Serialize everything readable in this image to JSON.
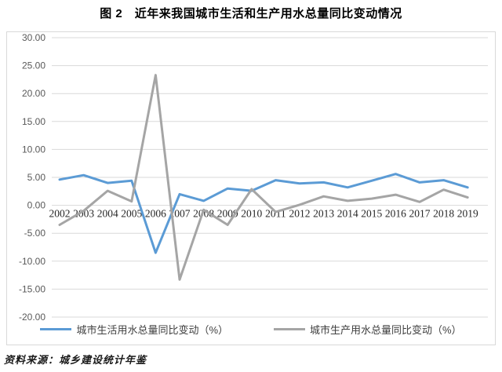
{
  "title": "图 2　近年来我国城市生活和生产用水总量同比变动情况",
  "source_note": "资料来源：城乡建设统计年鉴",
  "colors": {
    "domestic_line": "#5B9BD5",
    "production_line": "#A5A5A5",
    "gridline": "#D9D9D9",
    "chart_border": "#D9D9D9",
    "y_tick_text": "#595959",
    "x_tick_text": "#262626"
  },
  "chart_data": {
    "type": "line",
    "title": "图 2　近年来我国城市生活和生产用水总量同比变动情况",
    "categories": [
      "2002",
      "2003",
      "2004",
      "2005",
      "2006",
      "2007",
      "2008",
      "2009",
      "2010",
      "2011",
      "2012",
      "2013",
      "2014",
      "2015",
      "2016",
      "2017",
      "2018",
      "2019"
    ],
    "series": [
      {
        "name": "城市生活用水总量同比变动（%）",
        "color": "#5B9BD5",
        "values": [
          4.6,
          5.4,
          4.0,
          4.4,
          -8.5,
          2.0,
          0.8,
          3.0,
          2.6,
          4.5,
          3.9,
          4.1,
          3.2,
          4.4,
          5.6,
          4.1,
          4.5,
          3.2
        ]
      },
      {
        "name": "城市生产用水总量同比变动（%）",
        "color": "#A5A5A5",
        "values": [
          -3.5,
          -1.0,
          2.6,
          0.7,
          23.3,
          -13.3,
          -0.8,
          -3.5,
          2.9,
          -1.2,
          0.1,
          1.6,
          0.8,
          1.2,
          1.9,
          0.6,
          2.8,
          1.4
        ]
      }
    ],
    "xlabel": "",
    "ylabel": "",
    "ylim": [
      -20,
      30
    ],
    "ytick_step": 5,
    "ytick_labels": [
      "30.00",
      "25.00",
      "20.00",
      "15.00",
      "10.00",
      "5.00",
      "0.00",
      "-5.00",
      "-10.00",
      "-15.00",
      "-20.00"
    ],
    "grid": true,
    "legend_position": "bottom",
    "x_labels_at_zero_line": true
  }
}
